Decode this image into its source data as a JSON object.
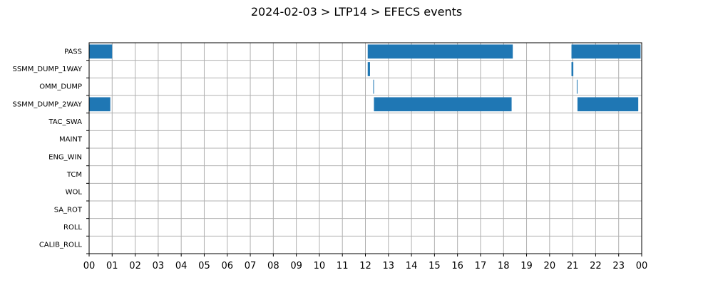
{
  "chart_data": {
    "type": "gantt",
    "title": "2024-02-03 > LTP14 > EFECS events",
    "xlabel": "",
    "ylabel": "",
    "xlim": [
      0,
      24
    ],
    "x_tick_labels": [
      "00",
      "01",
      "02",
      "03",
      "04",
      "05",
      "06",
      "07",
      "08",
      "09",
      "10",
      "11",
      "12",
      "13",
      "14",
      "15",
      "16",
      "17",
      "18",
      "19",
      "20",
      "21",
      "22",
      "23",
      "00"
    ],
    "categories": [
      "PASS",
      "SSMM_DUMP_1WAY",
      "OMM_DUMP",
      "SSMM_DUMP_2WAY",
      "TAC_SWA",
      "MAINT",
      "ENG_WIN",
      "TCM",
      "WOL",
      "SA_ROT",
      "ROLL",
      "CALIB_ROLL"
    ],
    "grid": true,
    "bar_color": "#1f77b4",
    "events": [
      {
        "category": "PASS",
        "start": 0.0,
        "end": 1.0
      },
      {
        "category": "PASS",
        "start": 12.1,
        "end": 18.4
      },
      {
        "category": "PASS",
        "start": 20.95,
        "end": 23.95
      },
      {
        "category": "SSMM_DUMP_1WAY",
        "start": 12.1,
        "end": 12.2
      },
      {
        "category": "SSMM_DUMP_1WAY",
        "start": 20.95,
        "end": 21.03
      },
      {
        "category": "OMM_DUMP",
        "start": 12.34,
        "end": 12.37
      },
      {
        "category": "OMM_DUMP",
        "start": 21.18,
        "end": 21.21
      },
      {
        "category": "SSMM_DUMP_2WAY",
        "start": 0.0,
        "end": 0.92
      },
      {
        "category": "SSMM_DUMP_2WAY",
        "start": 12.37,
        "end": 18.35
      },
      {
        "category": "SSMM_DUMP_2WAY",
        "start": 21.21,
        "end": 23.85
      }
    ]
  }
}
